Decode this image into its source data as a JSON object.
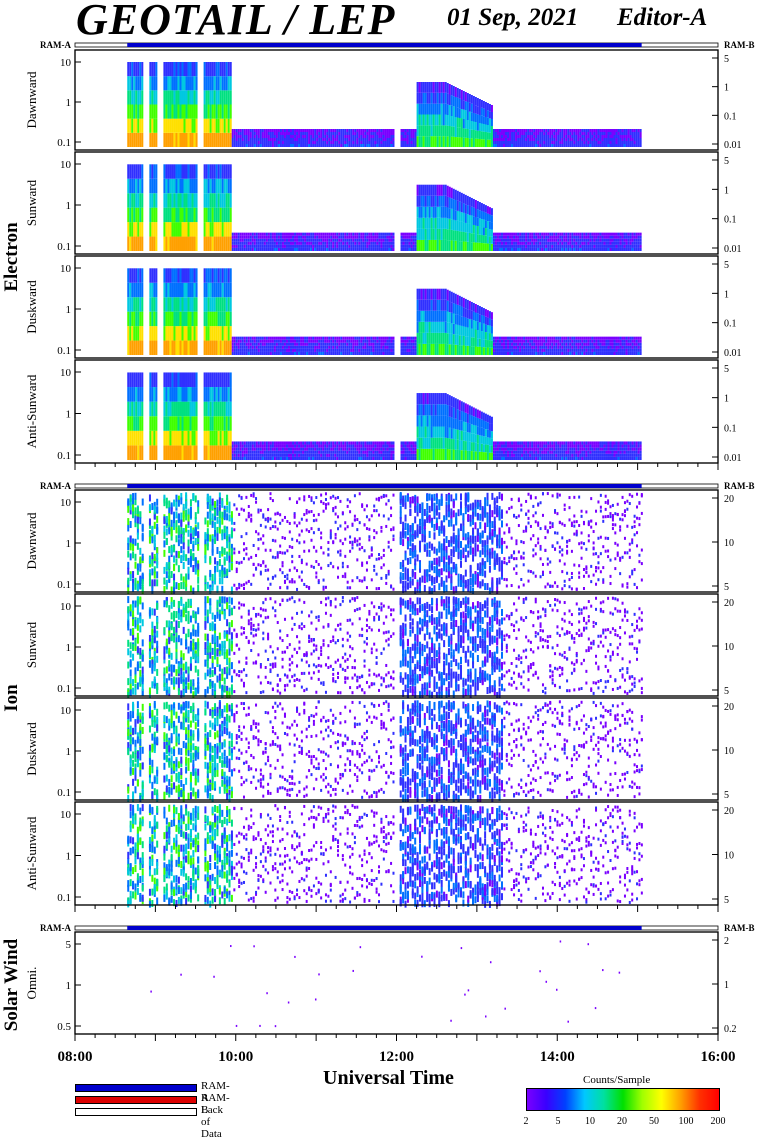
{
  "header": {
    "title": "GEOTAIL / LEP",
    "date": "01 Sep, 2021",
    "editor": "Editor-A"
  },
  "legend": {
    "items": [
      {
        "label": "RAM-A",
        "color": "#0000cc"
      },
      {
        "label": "RAM-B",
        "color": "#dd0000"
      },
      {
        "label": "Lack of Data",
        "color": "#ffffff"
      }
    ]
  },
  "colorbar": {
    "title": "Counts/Sample",
    "ticks": [
      "2",
      "5",
      "10",
      "20",
      "50",
      "100",
      "200"
    ]
  },
  "chart_data": {
    "type": "heatmap",
    "xlabel": "Universal Time",
    "x_ticks": [
      "08:00",
      "10:00",
      "12:00",
      "14:00",
      "16:00"
    ],
    "xlim_hours": [
      8,
      16
    ],
    "data_coverage_hours": [
      8.65,
      15.05
    ],
    "mode_bar_label_left": "RAM-A",
    "mode_bar_label_right": "RAM-B",
    "groups": [
      {
        "name": "Electron",
        "panels": [
          {
            "label": "Dawnward",
            "left_ticks": [
              "10",
              "1",
              "0.1"
            ],
            "right_ticks": [
              "5",
              "1",
              "0.1",
              "0.01"
            ]
          },
          {
            "label": "Sunward",
            "left_ticks": [
              "10",
              "1",
              "0.1"
            ],
            "right_ticks": [
              "5",
              "1",
              "0.1",
              "0.01"
            ]
          },
          {
            "label": "Duskward",
            "left_ticks": [
              "10",
              "1",
              "0.1"
            ],
            "right_ticks": [
              "5",
              "1",
              "0.1",
              "0.01"
            ]
          },
          {
            "label": "Anti-Sunward",
            "left_ticks": [
              "10",
              "1",
              "0.1"
            ],
            "right_ticks": [
              "5",
              "1",
              "0.1",
              "0.01"
            ]
          }
        ]
      },
      {
        "name": "Ion",
        "panels": [
          {
            "label": "Dawnward",
            "left_ticks": [
              "10",
              "1",
              "0.1"
            ],
            "right_ticks": [
              "20",
              "10",
              "5"
            ]
          },
          {
            "label": "Sunward",
            "left_ticks": [
              "10",
              "1",
              "0.1"
            ],
            "right_ticks": [
              "20",
              "10",
              "5"
            ]
          },
          {
            "label": "Duskward",
            "left_ticks": [
              "10",
              "1",
              "0.1"
            ],
            "right_ticks": [
              "20",
              "10",
              "5"
            ]
          },
          {
            "label": "Anti-Sunward",
            "left_ticks": [
              "10",
              "1",
              "0.1"
            ],
            "right_ticks": [
              "20",
              "10",
              "5"
            ]
          }
        ]
      },
      {
        "name": "Solar Wind",
        "panels": [
          {
            "label": "Omni.",
            "left_ticks": [
              "5",
              "1",
              "0.5"
            ],
            "right_ticks": [
              "2",
              "1",
              "0.2"
            ]
          }
        ]
      }
    ]
  }
}
